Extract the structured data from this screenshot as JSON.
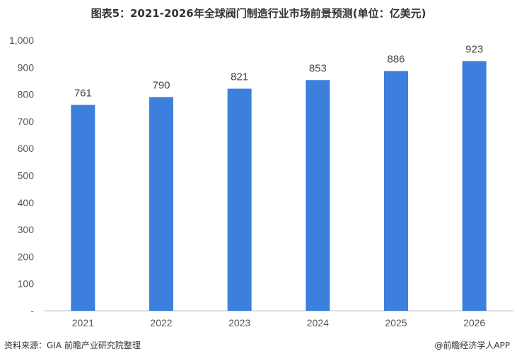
{
  "chart_data": {
    "type": "bar",
    "title": "图表5：2021-2026年全球阀门制造行业市场前景预测(单位：亿美元)",
    "categories": [
      "2021",
      "2022",
      "2023",
      "2024",
      "2025",
      "2026"
    ],
    "values": [
      761,
      790,
      821,
      853,
      886,
      923
    ],
    "ylim": [
      0,
      1000
    ],
    "yticks": [
      "-",
      "100",
      "200",
      "300",
      "400",
      "500",
      "600",
      "700",
      "800",
      "900",
      "1,000"
    ],
    "bar_color": "#3d7fdd",
    "grid": false,
    "legend": "none"
  },
  "footer": {
    "source": "资料来源：GIA 前瞻产业研究院整理",
    "brand": "@前瞻经济学人APP"
  }
}
